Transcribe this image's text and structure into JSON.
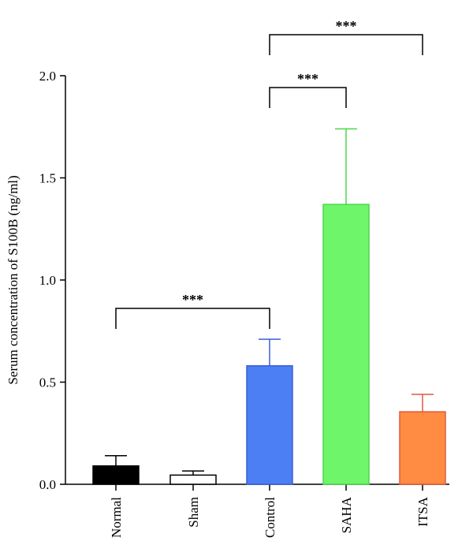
{
  "chart_data": {
    "type": "bar",
    "ylabel": "Serum concentration of S100B (ng/ml)",
    "xlabel": "",
    "ylim": [
      0,
      2.0
    ],
    "yticks": [
      "0.0",
      "0.5",
      "1.0",
      "1.5",
      "2.0"
    ],
    "categories": [
      "Normal",
      "Sham",
      "Control",
      "SAHA",
      "ITSA"
    ],
    "values": [
      0.09,
      0.045,
      0.58,
      1.37,
      0.355
    ],
    "errors": [
      0.05,
      0.02,
      0.13,
      0.37,
      0.085
    ],
    "colors": [
      "#000000",
      "#ffffff",
      "#4d7ff4",
      "#6ff56a",
      "#ff8c42"
    ],
    "edge_colors": [
      "#000000",
      "#000000",
      "#3a5fd8",
      "#4ed64a",
      "#e05a3a"
    ],
    "significance": [
      {
        "from": "Normal",
        "to": "Control",
        "label": "***"
      },
      {
        "from": "Control",
        "to": "SAHA",
        "label": "***"
      },
      {
        "from": "Control",
        "to": "ITSA",
        "label": "***"
      }
    ]
  }
}
